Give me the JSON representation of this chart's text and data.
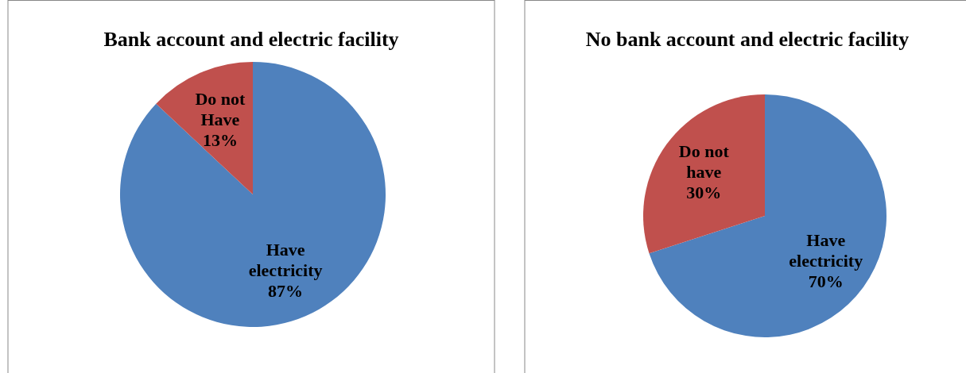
{
  "chart_data": [
    {
      "type": "pie",
      "title": "Bank account and electric facility",
      "categories": [
        "Have electricity",
        "Do not Have"
      ],
      "values": [
        87,
        13
      ],
      "colors": [
        "#4f81bd",
        "#c0504d"
      ],
      "value_labels": [
        "87%",
        "13%"
      ]
    },
    {
      "type": "pie",
      "title": "No bank account and electric facility",
      "categories": [
        "Have electricity",
        "Do not have"
      ],
      "values": [
        70,
        30
      ],
      "colors": [
        "#4f81bd",
        "#c0504d"
      ],
      "value_labels": [
        "70%",
        "30%"
      ]
    }
  ]
}
